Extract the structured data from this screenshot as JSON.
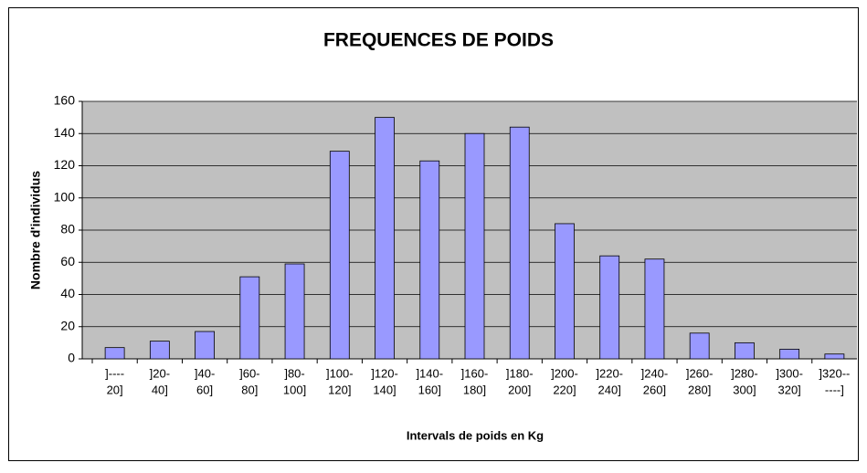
{
  "chart_data": {
    "type": "bar",
    "title": "FREQUENCES DE POIDS",
    "x_label": "Intervals de poids en Kg",
    "y_label": "Nombre d'individus",
    "categories": [
      [
        "]----",
        "20]"
      ],
      [
        "]20-",
        "40]"
      ],
      [
        "]40-",
        "60]"
      ],
      [
        "]60-",
        "80]"
      ],
      [
        "]80-",
        "100]"
      ],
      [
        "]100-",
        "120]"
      ],
      [
        "]120-",
        "140]"
      ],
      [
        "]140-",
        "160]"
      ],
      [
        "]160-",
        "180]"
      ],
      [
        "]180-",
        "200]"
      ],
      [
        "]200-",
        "220]"
      ],
      [
        "]220-",
        "240]"
      ],
      [
        "]240-",
        "260]"
      ],
      [
        "]260-",
        "280]"
      ],
      [
        "]280-",
        "300]"
      ],
      [
        "]300-",
        "320]"
      ],
      [
        "]320--",
        "----]"
      ]
    ],
    "values": [
      7,
      11,
      17,
      51,
      59,
      129,
      150,
      123,
      140,
      144,
      84,
      64,
      62,
      16,
      10,
      6,
      3
    ],
    "color": "#9999ff",
    "plot_background": "#c0c0c0",
    "ylim": [
      0,
      160
    ],
    "yticks": [
      0,
      20,
      40,
      60,
      80,
      100,
      120,
      140,
      160
    ],
    "grid": true
  }
}
